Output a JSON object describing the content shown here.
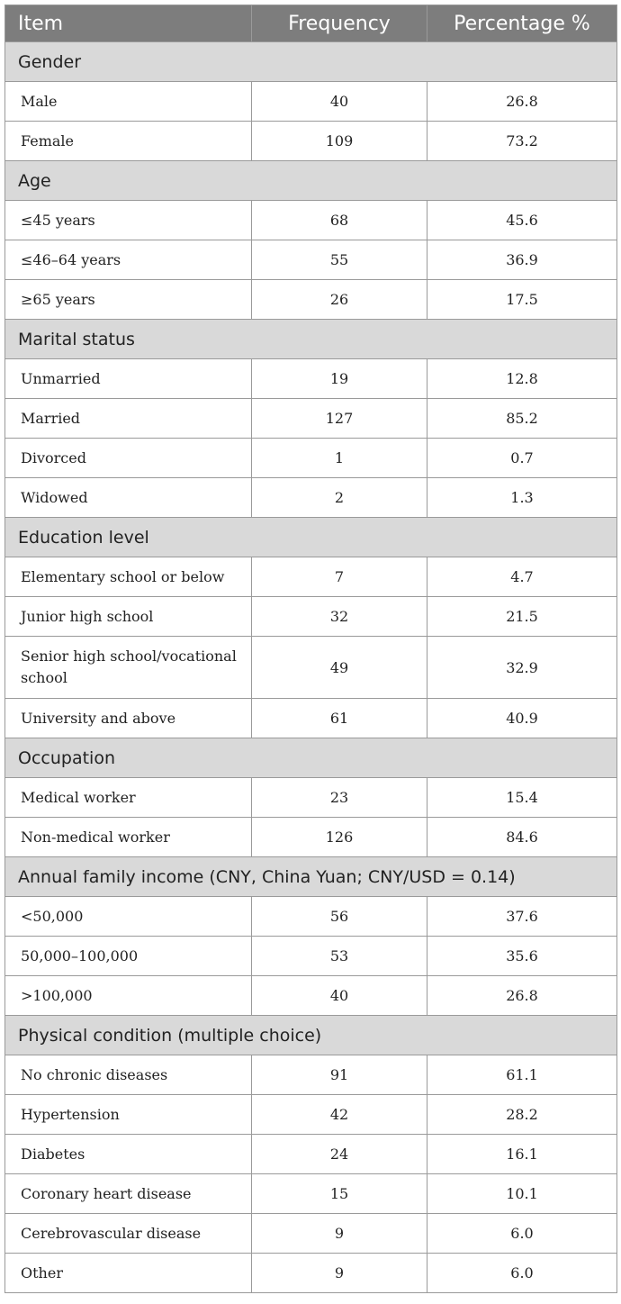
{
  "table": {
    "headers": {
      "item": "Item",
      "frequency": "Frequency",
      "percentage": "Percentage %"
    },
    "sections": [
      {
        "title": "Gender",
        "rows": [
          {
            "item": "Male",
            "frequency": "40",
            "percentage": "26.8"
          },
          {
            "item": "Female",
            "frequency": "109",
            "percentage": "73.2"
          }
        ]
      },
      {
        "title": "Age",
        "rows": [
          {
            "item": "≤45 years",
            "frequency": "68",
            "percentage": "45.6"
          },
          {
            "item": "≤46–64 years",
            "frequency": "55",
            "percentage": "36.9"
          },
          {
            "item": "≥65 years",
            "frequency": "26",
            "percentage": "17.5"
          }
        ]
      },
      {
        "title": "Marital status",
        "rows": [
          {
            "item": "Unmarried",
            "frequency": "19",
            "percentage": "12.8"
          },
          {
            "item": "Married",
            "frequency": "127",
            "percentage": "85.2"
          },
          {
            "item": "Divorced",
            "frequency": "1",
            "percentage": "0.7"
          },
          {
            "item": "Widowed",
            "frequency": "2",
            "percentage": "1.3"
          }
        ]
      },
      {
        "title": "Education level",
        "rows": [
          {
            "item": "Elementary school or below",
            "frequency": "7",
            "percentage": "4.7"
          },
          {
            "item": "Junior high school",
            "frequency": "32",
            "percentage": "21.5"
          },
          {
            "item": "Senior high school/vocational school",
            "frequency": "49",
            "percentage": "32.9"
          },
          {
            "item": "University and above",
            "frequency": "61",
            "percentage": "40.9"
          }
        ]
      },
      {
        "title": "Occupation",
        "rows": [
          {
            "item": "Medical worker",
            "frequency": "23",
            "percentage": "15.4"
          },
          {
            "item": "Non-medical worker",
            "frequency": "126",
            "percentage": "84.6"
          }
        ]
      },
      {
        "title": "Annual family income (CNY, China Yuan; CNY/USD = 0.14)",
        "rows": [
          {
            "item": "<50,000",
            "frequency": "56",
            "percentage": "37.6"
          },
          {
            "item": "50,000–100,000",
            "frequency": "53",
            "percentage": "35.6"
          },
          {
            "item": ">100,000",
            "frequency": "40",
            "percentage": "26.8"
          }
        ]
      },
      {
        "title": "Physical condition (multiple choice)",
        "rows": [
          {
            "item": "No chronic diseases",
            "frequency": "91",
            "percentage": "61.1"
          },
          {
            "item": "Hypertension",
            "frequency": "42",
            "percentage": "28.2"
          },
          {
            "item": "Diabetes",
            "frequency": "24",
            "percentage": "16.1"
          },
          {
            "item": "Coronary heart disease",
            "frequency": "15",
            "percentage": "10.1"
          },
          {
            "item": "Cerebrovascular disease",
            "frequency": "9",
            "percentage": "6.0"
          },
          {
            "item": "Other",
            "frequency": "9",
            "percentage": "6.0"
          }
        ]
      }
    ]
  }
}
